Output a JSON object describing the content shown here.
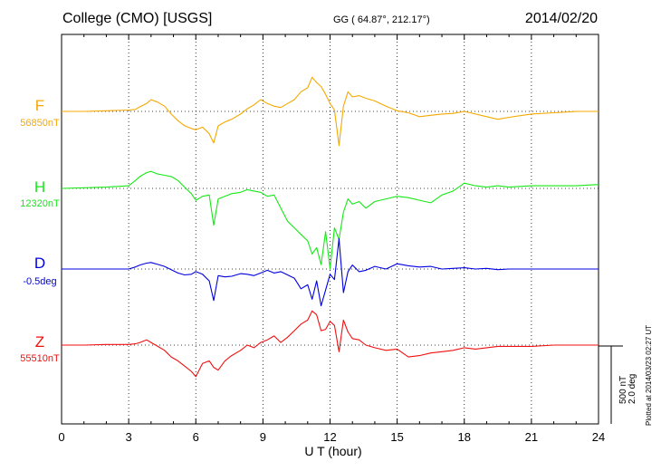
{
  "header": {
    "station": "College (CMO)  [USGS]",
    "coords": "GG ( 64.87°, 212.17°)",
    "date": "2014/02/20"
  },
  "traces": [
    {
      "name": "F",
      "baseline": "56850nT",
      "color": "#f5a800"
    },
    {
      "name": "H",
      "baseline": "12320nT",
      "color": "#17e817"
    },
    {
      "name": "D",
      "baseline": "-0.5deg",
      "color": "#0000e0"
    },
    {
      "name": "Z",
      "baseline": "55510nT",
      "color": "#f01010"
    }
  ],
  "scale": {
    "line1": "500 nT",
    "line2": "2.0 deg"
  },
  "plotted": "Plotted at 2014/03/23 02:27 UT",
  "chart_data": {
    "type": "line",
    "title": "College (CMO)  [USGS]",
    "xlabel": "U T (hour)",
    "ylabel": "",
    "xlim": [
      0,
      24
    ],
    "xticks": [
      0,
      3,
      6,
      9,
      12,
      15,
      18,
      21,
      24
    ],
    "grid": true,
    "series": [
      {
        "name": "F",
        "baseline": "56850nT",
        "x": [
          0,
          1,
          2,
          3,
          3.3,
          3.5,
          3.8,
          4.0,
          4.3,
          4.6,
          4.9,
          5.2,
          5.5,
          5.8,
          6.0,
          6.3,
          6.6,
          6.8,
          7.0,
          7.3,
          7.6,
          8.0,
          8.3,
          8.6,
          8.9,
          9.2,
          9.5,
          9.8,
          10.1,
          10.4,
          10.7,
          11.0,
          11.2,
          11.4,
          11.6,
          11.8,
          12.0,
          12.2,
          12.4,
          12.6,
          12.8,
          13.0,
          13.3,
          13.6,
          14.0,
          14.5,
          15.0,
          15.5,
          16.0,
          16.5,
          17.0,
          17.5,
          18.0,
          18.5,
          19.0,
          19.5,
          20.0,
          21.0,
          22.0,
          23.0,
          24.0
        ],
        "y": [
          0,
          0,
          5,
          10,
          15,
          35,
          60,
          90,
          70,
          40,
          -20,
          -70,
          -110,
          -130,
          -140,
          -120,
          -170,
          -240,
          -110,
          -80,
          -60,
          -20,
          20,
          50,
          90,
          60,
          40,
          30,
          60,
          90,
          150,
          180,
          260,
          220,
          190,
          130,
          60,
          10,
          -260,
          40,
          150,
          110,
          120,
          100,
          80,
          40,
          5,
          -10,
          -40,
          -30,
          -20,
          -15,
          0,
          -20,
          -40,
          -60,
          -45,
          -20,
          -10,
          0,
          0
        ]
      },
      {
        "name": "H",
        "baseline": "12320nT",
        "x": [
          0,
          1,
          2,
          3,
          3.3,
          3.5,
          3.8,
          4.0,
          4.3,
          4.6,
          4.9,
          5.2,
          5.5,
          5.8,
          6.0,
          6.3,
          6.6,
          6.8,
          7.0,
          7.3,
          7.6,
          8.0,
          8.3,
          8.6,
          8.9,
          9.2,
          9.5,
          9.8,
          10.1,
          10.4,
          10.7,
          11.0,
          11.2,
          11.4,
          11.6,
          11.8,
          12.0,
          12.2,
          12.4,
          12.6,
          12.8,
          13.0,
          13.3,
          13.6,
          14.0,
          14.5,
          15.0,
          15.5,
          16.0,
          16.5,
          17.0,
          17.5,
          18.0,
          18.5,
          19.0,
          19.5,
          20.0,
          21.0,
          22.0,
          23.0,
          24.0
        ],
        "y": [
          0,
          5,
          10,
          20,
          60,
          90,
          120,
          130,
          110,
          100,
          90,
          60,
          10,
          -40,
          -90,
          -60,
          -50,
          -280,
          -80,
          -60,
          -40,
          -30,
          -10,
          -20,
          -30,
          -60,
          -50,
          -150,
          -250,
          -300,
          -350,
          -400,
          -500,
          -450,
          -580,
          -330,
          -610,
          -300,
          -390,
          -180,
          -80,
          -120,
          -100,
          -150,
          -100,
          -80,
          -60,
          -70,
          -90,
          -110,
          -50,
          -20,
          40,
          20,
          10,
          20,
          10,
          20,
          20,
          20,
          30
        ]
      },
      {
        "name": "D",
        "baseline": "-0.5deg",
        "x": [
          0,
          1,
          2,
          3,
          3.3,
          3.5,
          3.8,
          4.0,
          4.3,
          4.6,
          4.9,
          5.2,
          5.5,
          5.8,
          6.0,
          6.3,
          6.6,
          6.8,
          7.0,
          7.3,
          7.6,
          8.0,
          8.3,
          8.6,
          8.9,
          9.2,
          9.5,
          9.8,
          10.1,
          10.4,
          10.7,
          11.0,
          11.2,
          11.4,
          11.6,
          11.8,
          12.0,
          12.2,
          12.4,
          12.6,
          12.8,
          13.0,
          13.3,
          13.6,
          14.0,
          14.5,
          15.0,
          15.5,
          16.0,
          16.5,
          17.0,
          17.5,
          18.0,
          18.5,
          19.0,
          19.5,
          20.0,
          21.0,
          22.0,
          23.0,
          24.0
        ],
        "y": [
          0,
          0,
          0,
          0,
          15,
          30,
          45,
          50,
          35,
          20,
          -5,
          -30,
          -45,
          -40,
          -20,
          -40,
          -90,
          -240,
          -50,
          -60,
          -55,
          -35,
          -40,
          -50,
          -30,
          -10,
          -30,
          -20,
          -45,
          -70,
          -150,
          -120,
          -230,
          -90,
          -280,
          -160,
          -40,
          -80,
          230,
          -180,
          -20,
          30,
          -20,
          -10,
          20,
          0,
          40,
          25,
          15,
          20,
          0,
          5,
          10,
          0,
          5,
          -5,
          0,
          0,
          0,
          0,
          0
        ]
      },
      {
        "name": "Z",
        "baseline": "55510nT",
        "x": [
          0,
          1,
          2,
          3,
          3.3,
          3.5,
          3.8,
          4.0,
          4.3,
          4.6,
          4.9,
          5.2,
          5.5,
          5.8,
          6.0,
          6.3,
          6.6,
          6.8,
          7.0,
          7.3,
          7.6,
          8.0,
          8.3,
          8.6,
          8.9,
          9.2,
          9.5,
          9.8,
          10.1,
          10.4,
          10.7,
          11.0,
          11.2,
          11.4,
          11.6,
          11.8,
          12.0,
          12.2,
          12.4,
          12.6,
          12.8,
          13.0,
          13.3,
          13.6,
          14.0,
          14.5,
          15.0,
          15.5,
          16.0,
          16.5,
          17.0,
          17.5,
          18.0,
          18.5,
          19.0,
          19.5,
          20.0,
          21.0,
          22.0,
          23.0,
          24.0
        ],
        "y": [
          0,
          0,
          5,
          5,
          10,
          20,
          40,
          20,
          -10,
          -40,
          -90,
          -120,
          -160,
          -200,
          -240,
          -140,
          -120,
          -170,
          -190,
          -120,
          -80,
          -40,
          0,
          -20,
          20,
          40,
          70,
          20,
          60,
          110,
          160,
          190,
          260,
          230,
          110,
          120,
          180,
          150,
          -50,
          190,
          100,
          50,
          40,
          0,
          -20,
          -40,
          -30,
          -90,
          -80,
          -60,
          -50,
          -40,
          -20,
          -30,
          -20,
          -10,
          -10,
          -10,
          0,
          0,
          0
        ]
      }
    ],
    "scale_bar": "500 nT / 2.0 deg"
  }
}
